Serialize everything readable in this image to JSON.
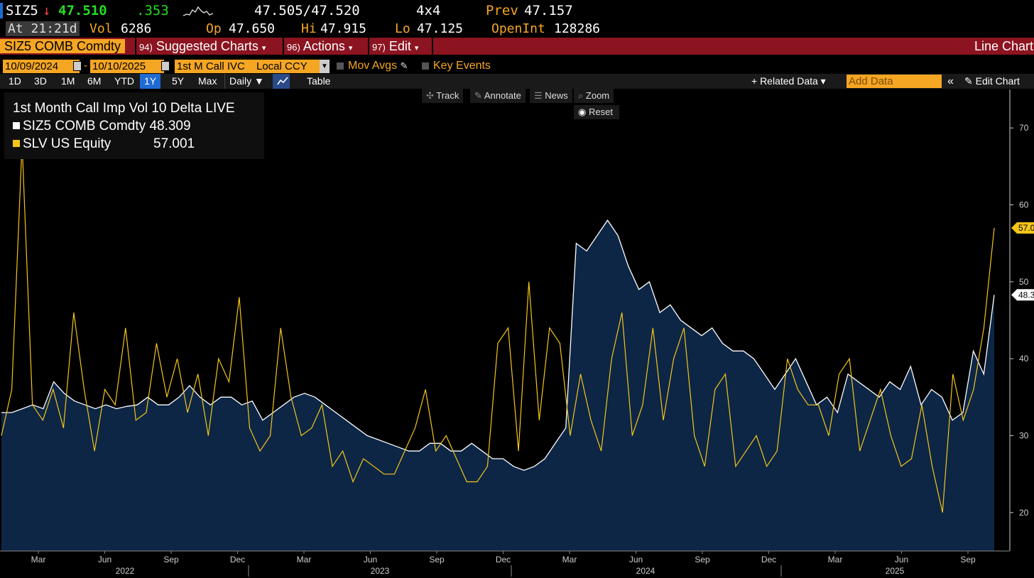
{
  "quote": {
    "ticker": "SIZ5",
    "arrow": "↓",
    "last": "47.510",
    "change": ".353",
    "bid_ask": "47.505/47.520",
    "size": "4x4",
    "prev_label": "Prev",
    "prev": "47.157",
    "at_label": "At",
    "time": "21:21d",
    "vol_label": "Vol",
    "vol": "6286",
    "op_label": "Op",
    "op": "47.650",
    "hi_label": "Hi",
    "hi": "47.915",
    "lo_label": "Lo",
    "lo": "47.125",
    "oi_label": "OpenInt",
    "oi": "128286"
  },
  "menubar": {
    "security": "SIZ5 COMB Comdty",
    "suggested_num": "94)",
    "suggested": "Suggested Charts",
    "actions_num": "96)",
    "actions": "Actions",
    "edit_num": "97)",
    "edit": "Edit",
    "chart_type": "Line Chart"
  },
  "options": {
    "start_date": "10/09/2024",
    "dash": "-",
    "end_date": "10/10/2025",
    "field": "1st M Call IVC",
    "currency": "Local CCY",
    "mov_avgs": "Mov Avgs",
    "key_events": "Key Events"
  },
  "toolbar": {
    "periods": [
      "1D",
      "3D",
      "1M",
      "6M",
      "YTD",
      "1Y",
      "5Y",
      "Max"
    ],
    "active_period": "1Y",
    "frequency": "Daily ▼",
    "table": "Table",
    "related": "+ Related Data ▾",
    "add_placeholder": "Add Data",
    "collapse": "«",
    "edit_chart": "✎ Edit Chart"
  },
  "tools": {
    "track": "Track",
    "annotate": "Annotate",
    "news": "News",
    "zoom": "Zoom",
    "reset": "Reset"
  },
  "colors": {
    "accent": "#f5a623",
    "menubar": "#8b1420",
    "area_fill": "#0d2646",
    "series1": "#ffffff",
    "series2": "#f5c518",
    "up": "#22dd22",
    "down": "#ff3b3b"
  },
  "chart_data": {
    "type": "line",
    "title": "1st Month Call Imp Vol 10 Delta LIVE",
    "ylim": [
      15,
      75
    ],
    "yticks": [
      20,
      30,
      40,
      50,
      60,
      70
    ],
    "month_ticks": [
      "Mar",
      "Jun",
      "Sep",
      "Dec",
      "Mar",
      "Jun",
      "Sep",
      "Dec",
      "Mar",
      "Jun",
      "Sep",
      "Dec",
      "Mar",
      "Jun",
      "Sep"
    ],
    "years": [
      "2022",
      "2023",
      "2024",
      "2025"
    ],
    "grid": false,
    "legend": "top-left",
    "series": [
      {
        "name": "SIZ5 COMB Comdty",
        "legend_value": "48.309",
        "last_label": "48.3",
        "style": "area",
        "values": [
          33,
          33,
          33.5,
          34,
          33.5,
          37,
          35.5,
          34.5,
          34,
          33.5,
          34,
          33.5,
          33.8,
          34,
          35,
          34,
          34,
          35,
          36.5,
          35,
          34,
          35,
          35,
          34,
          34.5,
          32,
          33,
          34,
          35,
          35.5,
          35,
          34,
          33,
          32,
          31,
          30,
          29.5,
          29,
          28.5,
          28,
          28,
          29,
          29,
          28,
          28,
          29,
          28,
          27,
          27,
          26,
          25.5,
          26,
          27,
          29,
          31,
          55,
          54,
          56,
          58,
          56,
          52,
          49,
          50,
          46,
          47,
          45,
          44,
          43,
          44,
          42,
          41,
          41,
          40,
          38,
          36,
          38,
          40,
          37,
          34,
          35,
          33,
          38,
          37,
          36,
          35,
          37,
          36,
          39,
          34,
          36,
          35,
          32,
          33,
          41,
          38,
          48.3
        ]
      },
      {
        "name": "SLV US Equity",
        "legend_value": "57.001",
        "last_label": "57.0",
        "style": "line",
        "values": [
          30,
          36,
          68,
          34,
          32,
          36,
          31,
          46,
          36,
          28,
          36,
          34,
          44,
          32,
          33,
          42,
          35,
          40,
          33,
          38,
          30,
          40,
          37,
          48,
          31,
          28,
          30,
          44,
          35,
          30,
          31,
          34,
          26,
          28,
          24,
          27,
          26,
          25,
          25,
          28,
          31,
          36,
          28,
          30,
          27,
          24,
          24,
          26,
          42,
          44,
          28,
          50,
          32,
          44,
          42,
          30,
          38,
          32,
          28,
          40,
          46,
          30,
          34,
          44,
          32,
          40,
          44,
          30,
          26,
          36,
          38,
          26,
          28,
          30,
          26,
          28,
          40,
          36,
          34,
          34,
          30,
          38,
          40,
          28,
          32,
          36,
          30,
          26,
          27,
          34,
          26,
          20,
          38,
          32,
          36,
          44,
          57
        ]
      }
    ]
  }
}
